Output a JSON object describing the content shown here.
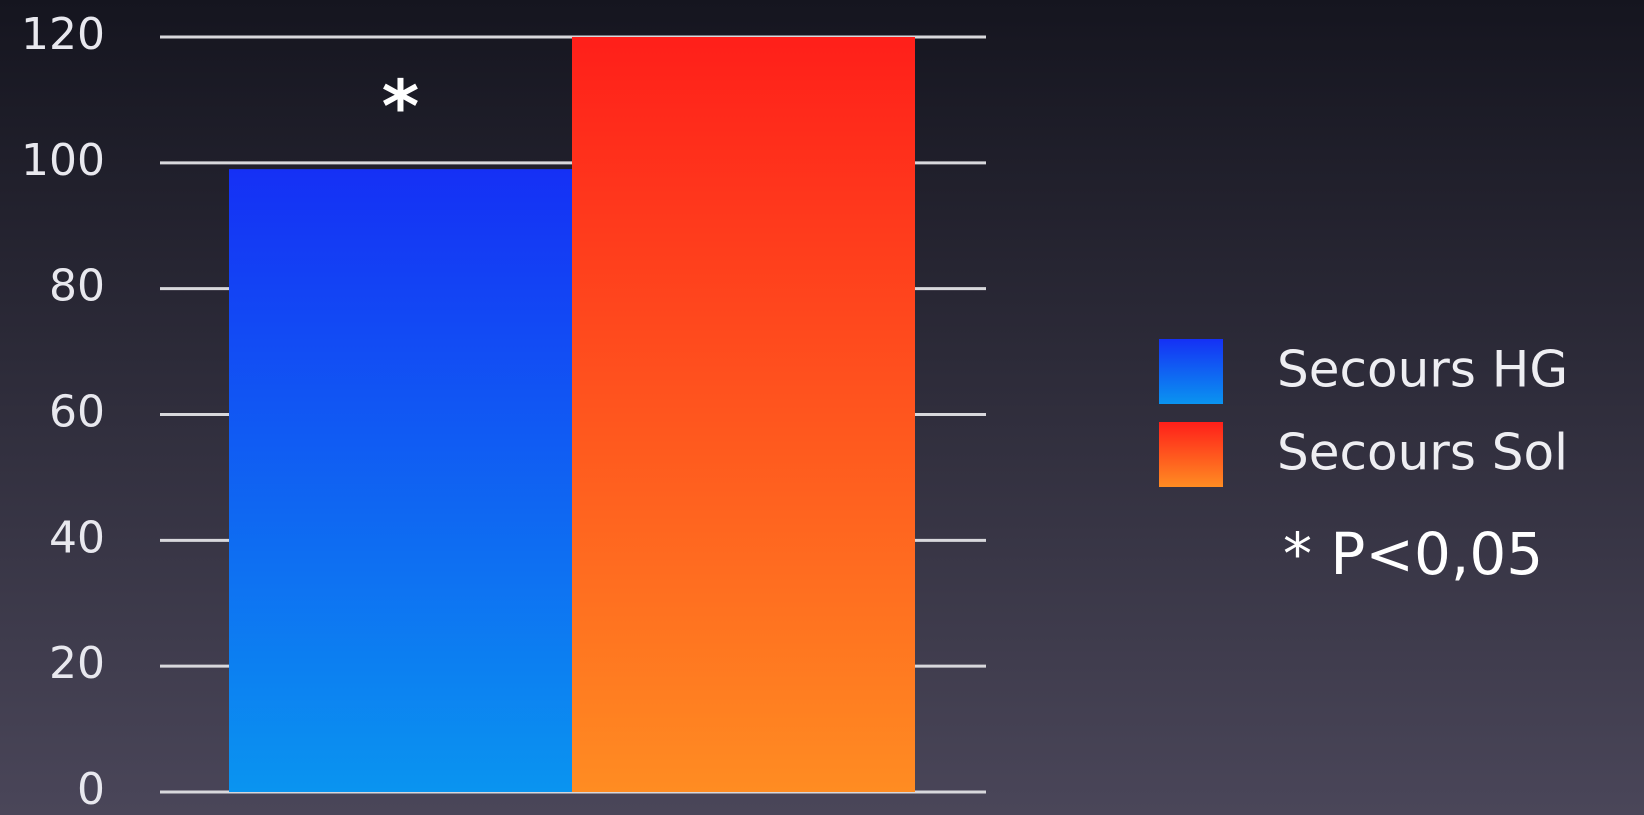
{
  "chart_data": {
    "type": "bar",
    "categories": [
      null
    ],
    "series": [
      {
        "name": "Secours HG",
        "color": "#1238f2",
        "gradient": [
          "#1530f5",
          "#0a94f0"
        ],
        "values": [
          99
        ]
      },
      {
        "name": "Secours Sol",
        "color": "#ff3a1a",
        "gradient": [
          "#ff1f1a",
          "#ff8c22"
        ],
        "values": [
          120
        ]
      }
    ],
    "ylim": [
      0,
      120
    ],
    "yticks": [
      0,
      20,
      40,
      60,
      80,
      100,
      120
    ],
    "grid": true,
    "legend": "right",
    "annotations": [
      {
        "text": "*"
      },
      {
        "text": "* P<0,05"
      }
    ]
  }
}
